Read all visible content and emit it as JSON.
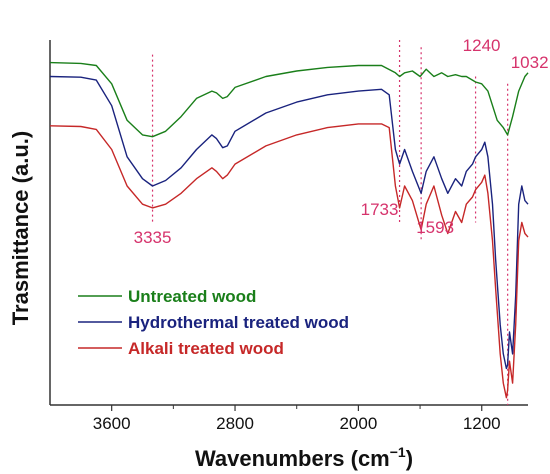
{
  "chart_data": {
    "type": "line",
    "title": "",
    "xlabel": "Wavenumbers (cm",
    "xlabel_sup": "−1",
    "xlabel_close": ")",
    "ylabel": "Trasmittance (a.u.)",
    "xlim": [
      4000,
      900
    ],
    "x_reversed": true,
    "y_tick_labels_shown": false,
    "x_ticks": [
      3600,
      2800,
      2000,
      1200
    ],
    "x_tick_labels": [
      "3600",
      "2800",
      "2000",
      "1200"
    ],
    "grid": false,
    "legend_position": "bottom-left",
    "series": [
      {
        "name": "Untreated wood",
        "color": "#1a7f1a",
        "points": [
          [
            4000,
            0.938
          ],
          [
            3800,
            0.936
          ],
          [
            3700,
            0.93
          ],
          [
            3600,
            0.88
          ],
          [
            3500,
            0.78
          ],
          [
            3400,
            0.74
          ],
          [
            3335,
            0.735
          ],
          [
            3250,
            0.75
          ],
          [
            3150,
            0.79
          ],
          [
            3050,
            0.84
          ],
          [
            2950,
            0.86
          ],
          [
            2920,
            0.855
          ],
          [
            2880,
            0.84
          ],
          [
            2850,
            0.845
          ],
          [
            2800,
            0.87
          ],
          [
            2600,
            0.9
          ],
          [
            2400,
            0.915
          ],
          [
            2200,
            0.925
          ],
          [
            2000,
            0.93
          ],
          [
            1850,
            0.93
          ],
          [
            1760,
            0.91
          ],
          [
            1733,
            0.9
          ],
          [
            1700,
            0.91
          ],
          [
            1650,
            0.915
          ],
          [
            1600,
            0.9
          ],
          [
            1560,
            0.92
          ],
          [
            1510,
            0.9
          ],
          [
            1460,
            0.91
          ],
          [
            1420,
            0.9
          ],
          [
            1370,
            0.905
          ],
          [
            1330,
            0.9
          ],
          [
            1300,
            0.9
          ],
          [
            1240,
            0.885
          ],
          [
            1200,
            0.88
          ],
          [
            1160,
            0.86
          ],
          [
            1100,
            0.78
          ],
          [
            1060,
            0.76
          ],
          [
            1032,
            0.74
          ],
          [
            1000,
            0.79
          ],
          [
            960,
            0.86
          ],
          [
            920,
            0.9
          ],
          [
            900,
            0.91
          ]
        ]
      },
      {
        "name": "Hydrothermal treated wood",
        "color": "#1a237e",
        "points": [
          [
            4000,
            0.9
          ],
          [
            3800,
            0.898
          ],
          [
            3700,
            0.89
          ],
          [
            3600,
            0.82
          ],
          [
            3500,
            0.68
          ],
          [
            3400,
            0.62
          ],
          [
            3335,
            0.6
          ],
          [
            3250,
            0.615
          ],
          [
            3150,
            0.65
          ],
          [
            3050,
            0.7
          ],
          [
            2950,
            0.74
          ],
          [
            2920,
            0.73
          ],
          [
            2880,
            0.705
          ],
          [
            2850,
            0.71
          ],
          [
            2800,
            0.75
          ],
          [
            2600,
            0.8
          ],
          [
            2400,
            0.83
          ],
          [
            2200,
            0.85
          ],
          [
            2000,
            0.86
          ],
          [
            1850,
            0.865
          ],
          [
            1800,
            0.85
          ],
          [
            1760,
            0.7
          ],
          [
            1733,
            0.66
          ],
          [
            1700,
            0.7
          ],
          [
            1650,
            0.64
          ],
          [
            1593,
            0.58
          ],
          [
            1560,
            0.64
          ],
          [
            1510,
            0.68
          ],
          [
            1460,
            0.62
          ],
          [
            1420,
            0.58
          ],
          [
            1370,
            0.62
          ],
          [
            1330,
            0.6
          ],
          [
            1300,
            0.64
          ],
          [
            1260,
            0.66
          ],
          [
            1240,
            0.68
          ],
          [
            1200,
            0.7
          ],
          [
            1180,
            0.72
          ],
          [
            1160,
            0.68
          ],
          [
            1130,
            0.55
          ],
          [
            1110,
            0.4
          ],
          [
            1080,
            0.22
          ],
          [
            1060,
            0.14
          ],
          [
            1040,
            0.1
          ],
          [
            1032,
            0.11
          ],
          [
            1020,
            0.2
          ],
          [
            1000,
            0.14
          ],
          [
            980,
            0.3
          ],
          [
            960,
            0.55
          ],
          [
            940,
            0.6
          ],
          [
            920,
            0.56
          ],
          [
            900,
            0.55
          ]
        ]
      },
      {
        "name": "Alkali treated wood",
        "color": "#c62828",
        "points": [
          [
            4000,
            0.765
          ],
          [
            3800,
            0.763
          ],
          [
            3700,
            0.755
          ],
          [
            3600,
            0.7
          ],
          [
            3500,
            0.6
          ],
          [
            3400,
            0.55
          ],
          [
            3335,
            0.54
          ],
          [
            3250,
            0.55
          ],
          [
            3150,
            0.58
          ],
          [
            3050,
            0.62
          ],
          [
            2950,
            0.65
          ],
          [
            2920,
            0.64
          ],
          [
            2880,
            0.62
          ],
          [
            2850,
            0.63
          ],
          [
            2800,
            0.66
          ],
          [
            2600,
            0.71
          ],
          [
            2400,
            0.74
          ],
          [
            2200,
            0.76
          ],
          [
            2000,
            0.77
          ],
          [
            1850,
            0.77
          ],
          [
            1800,
            0.76
          ],
          [
            1760,
            0.6
          ],
          [
            1733,
            0.54
          ],
          [
            1700,
            0.6
          ],
          [
            1650,
            0.56
          ],
          [
            1593,
            0.48
          ],
          [
            1560,
            0.55
          ],
          [
            1510,
            0.6
          ],
          [
            1460,
            0.52
          ],
          [
            1420,
            0.47
          ],
          [
            1370,
            0.53
          ],
          [
            1330,
            0.5
          ],
          [
            1300,
            0.55
          ],
          [
            1260,
            0.57
          ],
          [
            1240,
            0.59
          ],
          [
            1200,
            0.61
          ],
          [
            1180,
            0.63
          ],
          [
            1160,
            0.58
          ],
          [
            1130,
            0.45
          ],
          [
            1110,
            0.32
          ],
          [
            1080,
            0.14
          ],
          [
            1060,
            0.06
          ],
          [
            1040,
            0.02
          ],
          [
            1032,
            0.04
          ],
          [
            1020,
            0.12
          ],
          [
            1000,
            0.06
          ],
          [
            980,
            0.22
          ],
          [
            960,
            0.45
          ],
          [
            940,
            0.5
          ],
          [
            920,
            0.47
          ],
          [
            900,
            0.46
          ]
        ]
      }
    ],
    "annotations": [
      {
        "label": "3335",
        "x": 3335,
        "line_top": 0.96,
        "line_bottom": 0.5
      },
      {
        "label": "1733",
        "x": 1733,
        "line_top": 1.0,
        "line_bottom": 0.5
      },
      {
        "label": "1593",
        "x": 1593,
        "line_top": 0.98,
        "line_bottom": 0.45
      },
      {
        "label": "1240",
        "x": 1240,
        "line_top": 0.9,
        "line_bottom": 0.5
      },
      {
        "label": "1032",
        "x": 1032,
        "line_top": 0.88,
        "line_bottom": 0.0
      }
    ],
    "annotation_color": "#d6336c"
  }
}
